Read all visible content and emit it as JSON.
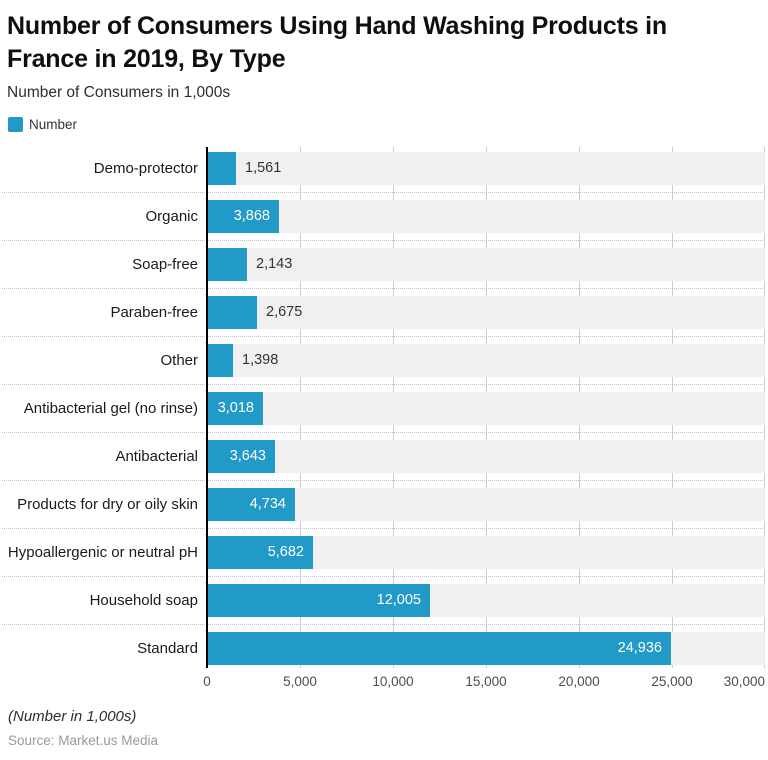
{
  "title": "Number of Consumers Using Hand Washing Products in France in 2019, By Type",
  "subtitle": "Number of Consumers in 1,000s",
  "legend": {
    "label": "Number",
    "swatch_color": "#229AC8"
  },
  "footer": {
    "note": "(Number in 1,000s)",
    "source": "Source: Market.us Media"
  },
  "colors": {
    "bar": "#229AC8",
    "band": "#F0F0F0",
    "gridline": "#CCCCCC",
    "axis_line": "#000000",
    "value_inside": "#FFFFFF",
    "value_outside": "#333333"
  },
  "chart_data": {
    "type": "bar",
    "orientation": "horizontal",
    "title": "Number of Consumers Using Hand Washing Products in France in 2019, By Type",
    "subtitle": "Number of Consumers in 1,000s",
    "series_name": "Number",
    "categories": [
      "Demo-protector",
      "Organic",
      "Soap-free",
      "Paraben-free",
      "Other",
      "Antibacterial gel (no rinse)",
      "Antibacterial",
      "Products for dry or oily skin",
      "Hypoallergenic or neutral pH",
      "Household soap",
      "Standard"
    ],
    "values": [
      1561,
      3868,
      2143,
      2675,
      1398,
      3018,
      3643,
      4734,
      5682,
      12005,
      24936
    ],
    "value_labels": [
      "1,561",
      "3,868",
      "2,143",
      "2,675",
      "1,398",
      "3,018",
      "3,643",
      "4,734",
      "5,682",
      "12,005",
      "24,936"
    ],
    "xlabel": "Number of Consumers in 1,000s",
    "ylabel": "",
    "xlim": [
      0,
      30000
    ],
    "x_ticks": [
      0,
      5000,
      10000,
      15000,
      20000,
      25000,
      30000
    ],
    "x_tick_labels": [
      "0",
      "5,000",
      "10,000",
      "15,000",
      "20,000",
      "25,000",
      "30,000"
    ],
    "grid": "vertical-solid-with-dotted-row-separators",
    "legend_position": "top-left"
  }
}
